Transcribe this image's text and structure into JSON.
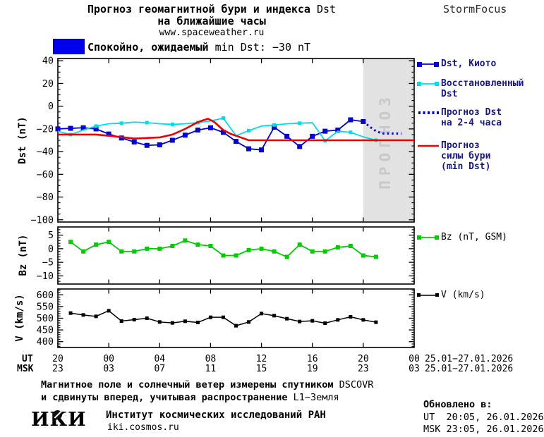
{
  "header": {
    "title_line1_bold": "Прогноз геомагнитной бури и индекса",
    "title_line1_reg": " Dst",
    "title_line2": "на ближайшие часы",
    "site": "www.spaceweather.ru",
    "brand": "StormFocus"
  },
  "status_banner": {
    "color": "#0000ee",
    "label_bold": "Спокойно, ожидаемый",
    "label_reg": " min Dst: −30 nT"
  },
  "colors": {
    "band": "#e2e2e2",
    "band_text": "#c9c9c9",
    "legend_text": "#17178c"
  },
  "legend": {
    "items": [
      {
        "label": "Dst, Киото"
      },
      {
        "label": "Восстановленный\nDst"
      },
      {
        "label": "Прогноз Dst\nна 2-4 часа"
      },
      {
        "label": "Прогноз\nсилы бури\n(min Dst)"
      },
      {
        "label": "Bz (nT, GSM)"
      },
      {
        "label": "V (km/s)"
      }
    ]
  },
  "footer": {
    "line1_bold": "Магнитное поле и солнечный ветер измерены спутником",
    "line1_reg": " DSCOVR",
    "line2_bold": "и сдвинуты вперед, учитывая распространение",
    "line2_reg": " L1−Земля"
  },
  "institute": {
    "logo": "ИКИ",
    "name": "Институт космических исследований РАН",
    "url": "iki.cosmos.ru"
  },
  "updated": {
    "title": "Обновлено в:",
    "ut": "UT  20:05, 26.01.2026",
    "msk": "MSK 23:05, 26.01.2026"
  },
  "chart_data": {
    "type": "line",
    "xaxis": {
      "xlim": [
        0,
        28
      ],
      "hours": [
        0,
        4,
        8,
        12,
        16,
        20,
        24,
        28
      ],
      "ut_label": "UT",
      "msk_label": "MSK",
      "ut_ticks": [
        "20",
        "00",
        "04",
        "08",
        "12",
        "16",
        "20",
        "00"
      ],
      "msk_ticks": [
        "23",
        "03",
        "07",
        "11",
        "15",
        "19",
        "23",
        "03"
      ],
      "date_range": "25.01−27.01.2026"
    },
    "panels": [
      {
        "id": "dst",
        "ylabel": "Dst (nT)",
        "ylim": [
          -102,
          42
        ],
        "yticks": [
          40,
          20,
          0,
          -20,
          -40,
          -60,
          -80,
          -100
        ],
        "minor_step": 5,
        "forecast_band": {
          "x_start": 24,
          "x_end": 28,
          "label": "ПРОГНОЗ"
        },
        "series": [
          {
            "name": "Dst, Киото",
            "color": "#0000dd",
            "width": 1.8,
            "style": "solid",
            "marker": 7,
            "marker_every": 1,
            "marker_offset": 0,
            "x": [
              0,
              1,
              2,
              3,
              4,
              5,
              6,
              7,
              8,
              9,
              10,
              11,
              12,
              13,
              14,
              15,
              16,
              17,
              18,
              19,
              20,
              21,
              22,
              23,
              24
            ],
            "y": [
              -20,
              -19.5,
              -19,
              -20,
              -24.5,
              -28,
              -31.5,
              -34.5,
              -34,
              -30,
              -25.5,
              -21,
              -19,
              -23,
              -31,
              -37.5,
              -38.5,
              -18.5,
              -26.5,
              -35.5,
              -26.5,
              -22,
              -21,
              -12,
              -13.5
            ]
          },
          {
            "name": "Восстановленный Dst",
            "color": "#00dcea",
            "width": 1.8,
            "style": "solid",
            "marker": 5,
            "marker_every": 2,
            "marker_offset": 1,
            "x": [
              0,
              1,
              2,
              3,
              4,
              5,
              6,
              7,
              8,
              9,
              10,
              11,
              12,
              13,
              14,
              15,
              16,
              17,
              18,
              19,
              20,
              21,
              22,
              23,
              24,
              25
            ],
            "y": [
              -22,
              -25,
              -21,
              -17.5,
              -15.5,
              -15,
              -14,
              -14.5,
              -15.5,
              -16,
              -15.5,
              -14.5,
              -13,
              -10.5,
              -26,
              -21.5,
              -17.5,
              -16.5,
              -15.5,
              -15,
              -14.5,
              -30.5,
              -22,
              -23,
              -27,
              -30
            ]
          },
          {
            "name": "Прогноз Dst на 2-4 часа",
            "color": "#0000d6",
            "width": 3,
            "style": "dotted",
            "marker": 0,
            "marker_every": 1,
            "marker_offset": 0,
            "x": [
              24,
              24.5,
              25,
              25.5,
              26,
              26.5,
              27
            ],
            "y": [
              -13.5,
              -18,
              -22,
              -24,
              -24,
              -24,
              -24
            ]
          },
          {
            "name": "Прогноз силы бури (min Dst)",
            "color": "#ee0000",
            "width": 2.6,
            "style": "solid",
            "marker": 0,
            "marker_every": 1,
            "marker_offset": 0,
            "x": [
              0,
              3,
              4,
              6,
              8,
              9,
              10,
              11,
              11.8,
              12.3,
              13,
              13.6,
              14,
              15,
              28
            ],
            "y": [
              -25,
              -25,
              -26,
              -28.5,
              -27.5,
              -25,
              -20,
              -14,
              -11,
              -14,
              -21,
              -24.5,
              -26,
              -30,
              -30
            ]
          }
        ]
      },
      {
        "id": "bz",
        "ylabel": "Bz (nT)",
        "ylim": [
          -13,
          8
        ],
        "yticks": [
          5,
          0,
          -5,
          -10
        ],
        "minor_step": 1,
        "series": [
          {
            "name": "Bz (nT, GSM)",
            "color": "#00cc00",
            "width": 1.8,
            "style": "solid",
            "marker": 6,
            "marker_every": 1,
            "marker_offset": 0,
            "x": [
              1,
              2,
              3,
              4,
              5,
              6,
              7,
              8,
              9,
              10,
              11,
              12,
              13,
              14,
              15,
              16,
              17,
              18,
              19,
              20,
              21,
              22,
              23,
              24,
              25
            ],
            "y": [
              2.5,
              -1,
              1.5,
              2.5,
              -1,
              -1,
              0,
              0,
              1,
              3,
              1.5,
              1,
              -2.5,
              -2.5,
              -0.5,
              0,
              -1,
              -3,
              1.5,
              -1,
              -1,
              0.5,
              1,
              -2.5,
              -3
            ]
          }
        ]
      },
      {
        "id": "v",
        "ylabel": "V (km/s)",
        "ylim": [
          375,
          625
        ],
        "yticks": [
          600,
          550,
          500,
          450,
          400
        ],
        "minor_step": 10,
        "series": [
          {
            "name": "V (km/s)",
            "color": "#000000",
            "width": 1.5,
            "style": "solid",
            "marker": 5,
            "marker_every": 1,
            "marker_offset": 0,
            "x": [
              1,
              2,
              3,
              4,
              5,
              6,
              7,
              8,
              9,
              10,
              11,
              12,
              13,
              14,
              15,
              16,
              17,
              18,
              19,
              20,
              21,
              22,
              23,
              24,
              25
            ],
            "y": [
              522,
              514,
              508,
              532,
              488,
              494,
              500,
              484,
              480,
              487,
              482,
              504,
              504,
              468,
              484,
              520,
              511,
              498,
              486,
              489,
              479,
              493,
              506,
              493,
              483
            ]
          }
        ]
      }
    ]
  }
}
